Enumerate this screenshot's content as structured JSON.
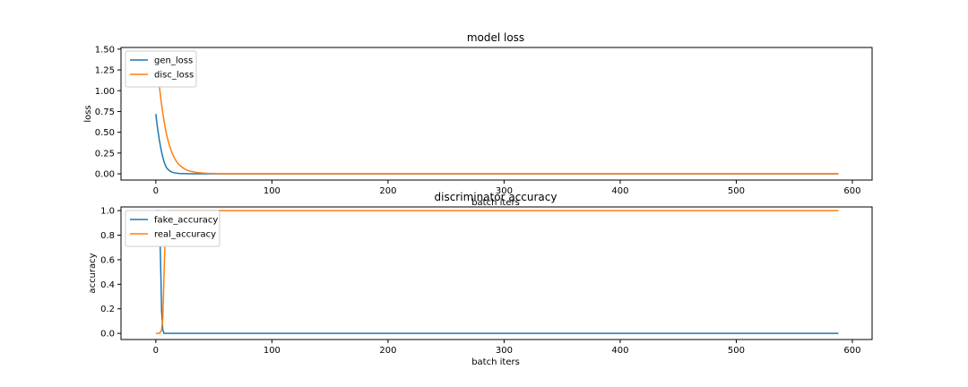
{
  "chart_data": [
    {
      "type": "line",
      "title": "model loss",
      "xlabel": "batch iters",
      "ylabel": "loss",
      "xlim": [
        -30,
        617
      ],
      "ylim": [
        -0.075,
        1.52
      ],
      "xticks": [
        0,
        100,
        200,
        300,
        400,
        500,
        600
      ],
      "yticks": [
        0.0,
        0.25,
        0.5,
        0.75,
        1.0,
        1.25,
        1.5
      ],
      "ytick_labels": [
        "0.00",
        "0.25",
        "0.50",
        "0.75",
        "1.00",
        "1.25",
        "1.50"
      ],
      "legend": "upper-left",
      "grid": false,
      "series": [
        {
          "name": "gen_loss",
          "color": "#1f77b4",
          "x": [
            0,
            1,
            2,
            3,
            4,
            5,
            6,
            7,
            8,
            9,
            10,
            12,
            14,
            16,
            18,
            20,
            23,
            26,
            30,
            35,
            40,
            50,
            60,
            80,
            100,
            588
          ],
          "y": [
            0.72,
            0.6,
            0.5,
            0.41,
            0.33,
            0.26,
            0.2,
            0.15,
            0.11,
            0.08,
            0.06,
            0.035,
            0.02,
            0.012,
            0.008,
            0.005,
            0.003,
            0.002,
            0.001,
            0.0005,
            0.0002,
            0.0001,
            0.0,
            0.0,
            0.0,
            0.0
          ]
        },
        {
          "name": "disc_loss",
          "color": "#ff7f0e",
          "x": [
            0,
            1,
            2,
            3,
            4,
            5,
            6,
            7,
            8,
            9,
            10,
            12,
            14,
            16,
            18,
            20,
            23,
            26,
            30,
            35,
            40,
            45,
            50,
            55,
            60,
            70,
            80,
            100,
            588
          ],
          "y": [
            1.47,
            1.35,
            1.2,
            1.06,
            0.94,
            0.83,
            0.73,
            0.64,
            0.56,
            0.49,
            0.43,
            0.33,
            0.25,
            0.19,
            0.145,
            0.11,
            0.075,
            0.05,
            0.03,
            0.017,
            0.01,
            0.006,
            0.004,
            0.002,
            0.001,
            0.0005,
            0.0002,
            0.0,
            0.0
          ]
        }
      ]
    },
    {
      "type": "line",
      "title": "discriminator accuracy",
      "xlabel": "batch iters",
      "ylabel": "accuracy",
      "xlim": [
        -30,
        617
      ],
      "ylim": [
        -0.05,
        1.03
      ],
      "xticks": [
        0,
        100,
        200,
        300,
        400,
        500,
        600
      ],
      "yticks": [
        0.0,
        0.2,
        0.4,
        0.6,
        0.8,
        1.0
      ],
      "ytick_labels": [
        "0.0",
        "0.2",
        "0.4",
        "0.6",
        "0.8",
        "1.0"
      ],
      "legend": "upper-left",
      "grid": false,
      "series": [
        {
          "name": "fake_accuracy",
          "color": "#1f77b4",
          "x": [
            0,
            1,
            2,
            3,
            4,
            5,
            6,
            7,
            8,
            10,
            588
          ],
          "y": [
            1.0,
            1.0,
            1.0,
            1.0,
            0.62,
            0.18,
            0.03,
            0.0,
            0.0,
            0.0,
            0.0
          ]
        },
        {
          "name": "real_accuracy",
          "color": "#ff7f0e",
          "x": [
            0,
            1,
            2,
            3,
            4,
            5,
            6,
            7,
            8,
            9,
            10,
            12,
            588
          ],
          "y": [
            0.0,
            0.0,
            0.0,
            0.0,
            0.01,
            0.03,
            0.12,
            0.45,
            0.78,
            0.95,
            1.0,
            1.0,
            1.0
          ]
        }
      ]
    }
  ]
}
